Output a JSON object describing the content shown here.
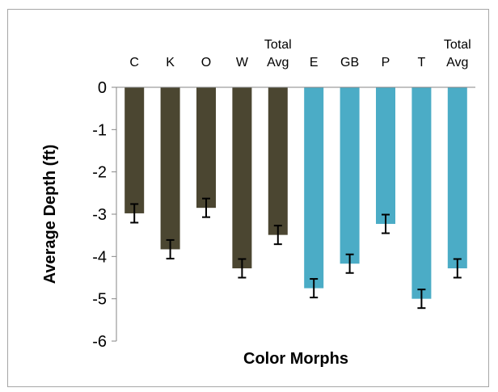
{
  "chart_data": {
    "type": "bar",
    "title": "",
    "xlabel": "Color Morphs",
    "ylabel": "Average Depth (ft)",
    "ylim": [
      -6,
      0
    ],
    "yticks": [
      0,
      -1,
      -2,
      -3,
      -4,
      -5,
      -6
    ],
    "x_axis_labels_position": "top",
    "grid": false,
    "legend": "none",
    "categories": [
      [
        "C"
      ],
      [
        "K"
      ],
      [
        "O"
      ],
      [
        "W"
      ],
      [
        "Total",
        "Avg"
      ],
      [
        "E"
      ],
      [
        "GB"
      ],
      [
        "P"
      ],
      [
        "T"
      ],
      [
        "Total",
        "Avg"
      ]
    ],
    "values": [
      -2.98,
      -3.83,
      -2.85,
      -4.28,
      -3.49,
      -4.75,
      -4.17,
      -3.23,
      -5.0,
      -4.28
    ],
    "error": [
      0.22,
      0.22,
      0.22,
      0.22,
      0.22,
      0.22,
      0.22,
      0.22,
      0.22,
      0.22
    ],
    "group": [
      0,
      0,
      0,
      0,
      0,
      1,
      1,
      1,
      1,
      1
    ],
    "colors": {
      "group_0": "#4b4631",
      "group_1": "#4bacc6",
      "axis": "#868686",
      "frame": "#a6a6a6",
      "error_bar": "#000000"
    }
  }
}
